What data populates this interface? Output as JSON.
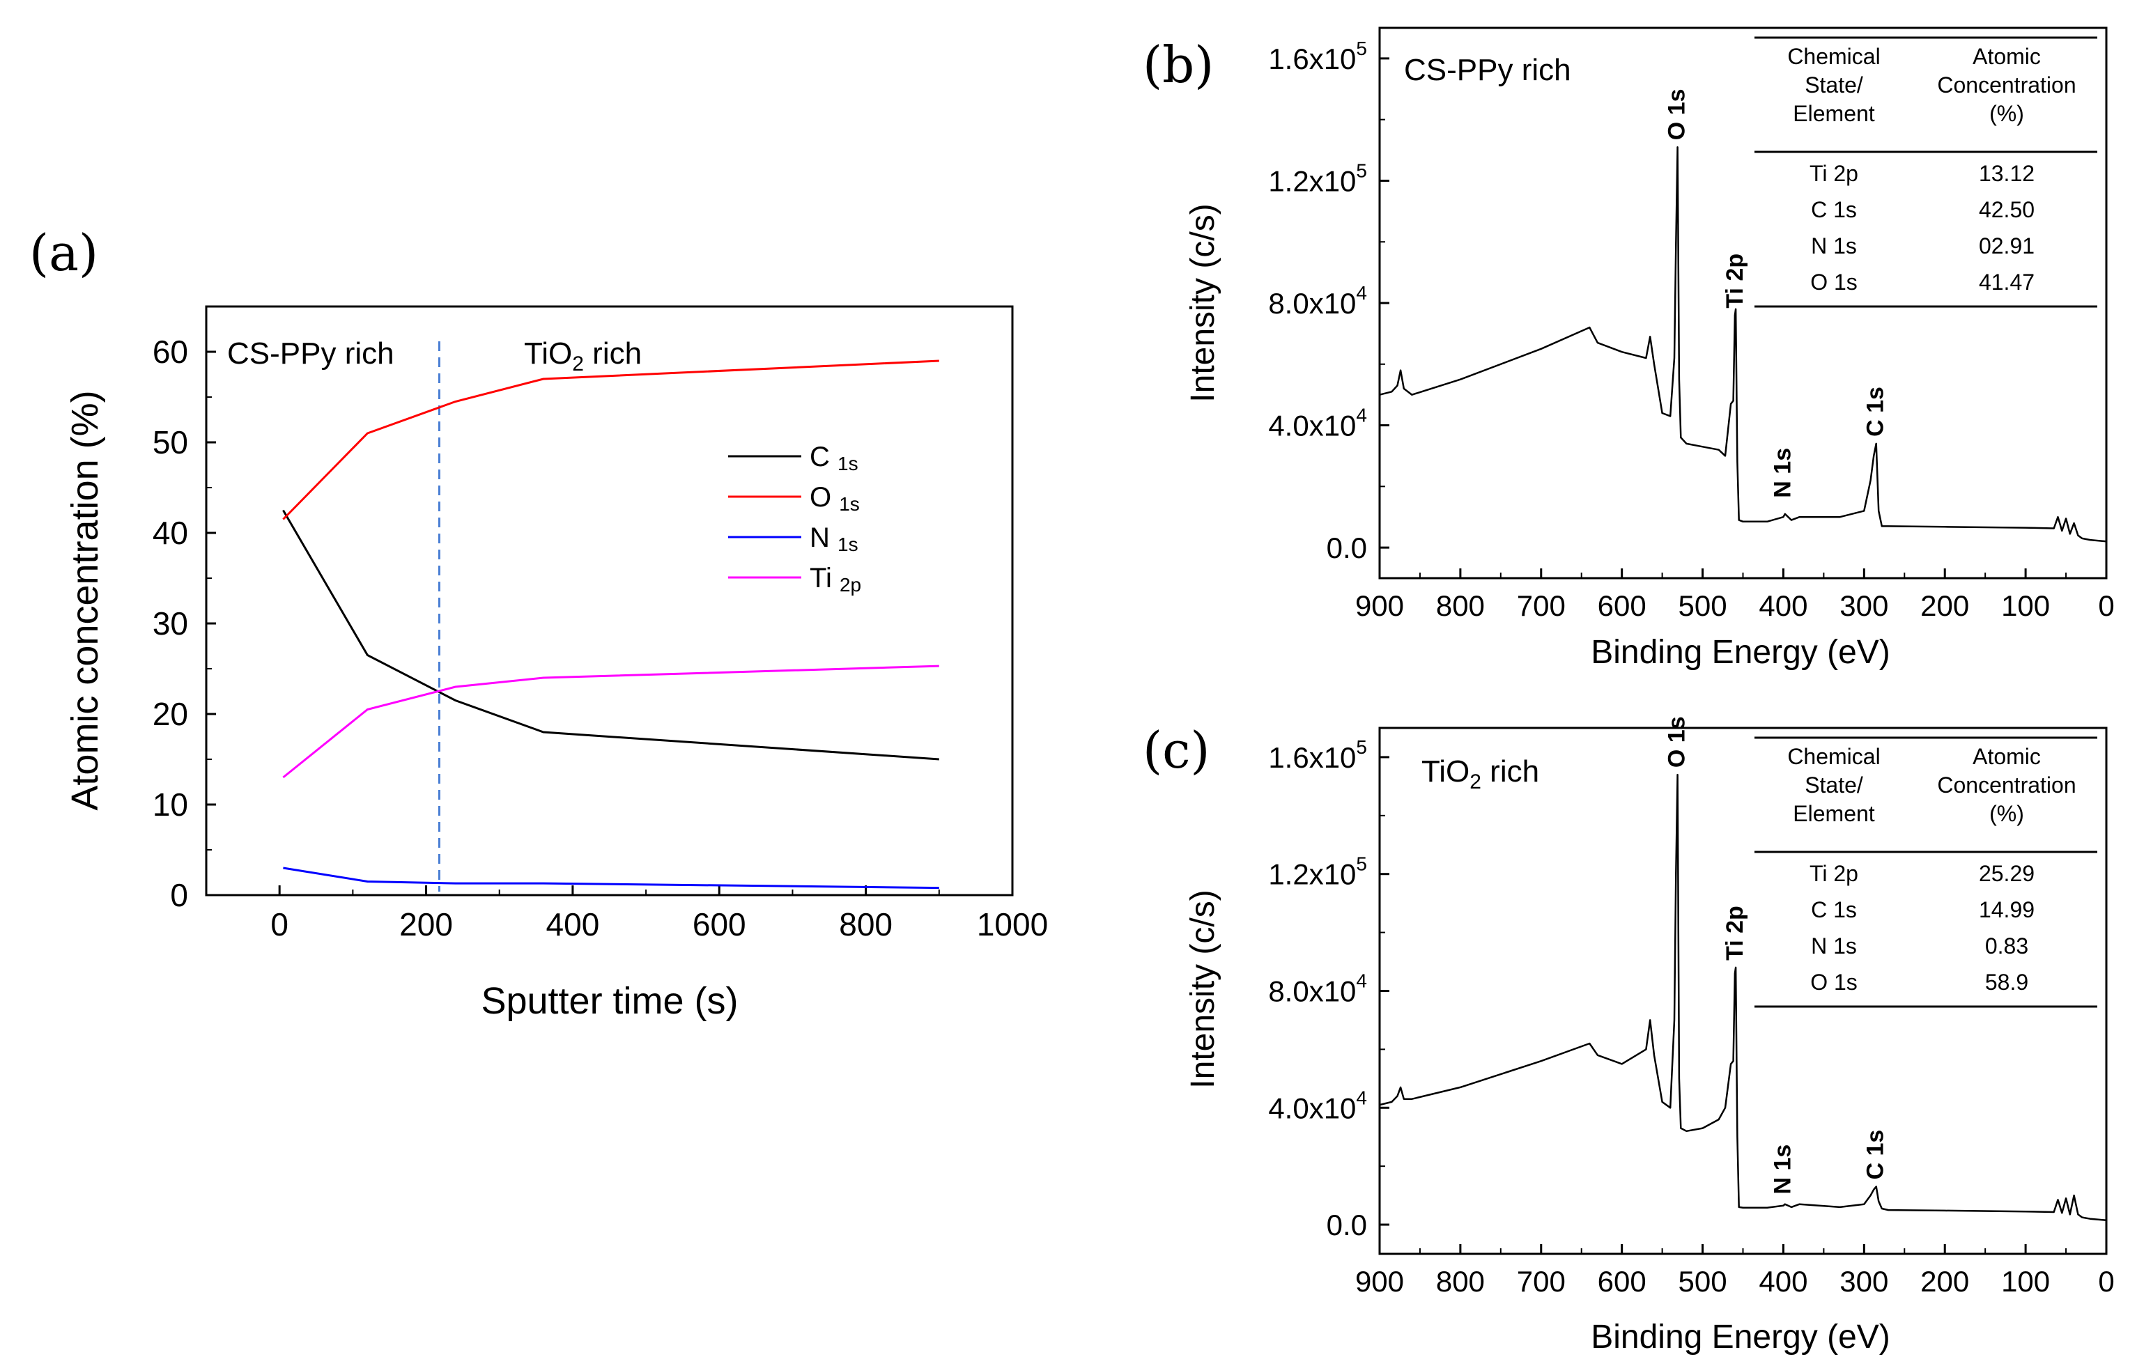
{
  "chart_data": [
    {
      "panel_label": "(a)",
      "type": "line",
      "xlabel": "Sputter time (s)",
      "ylabel": "Atomic concentration (%)",
      "xlim": [
        -100,
        1000
      ],
      "ylim": [
        0,
        65
      ],
      "x_ticks": [
        "0",
        "200",
        "400",
        "600",
        "800",
        "1000"
      ],
      "y_ticks": [
        "0",
        "10",
        "20",
        "30",
        "40",
        "50",
        "60"
      ],
      "region_left": "CS-PPy rich",
      "region_right_base": "TiO",
      "region_right_sub": "2",
      "region_right_rest": " rich",
      "divider_x": 218,
      "series": [
        {
          "name": "C",
          "sub": "1s",
          "color": "#000000",
          "x": [
            5,
            120,
            240,
            360,
            900
          ],
          "values": [
            42.5,
            26.5,
            21.5,
            18,
            15
          ]
        },
        {
          "name": "O",
          "sub": "1s",
          "color": "#ff0000",
          "x": [
            5,
            120,
            240,
            360,
            900
          ],
          "values": [
            41.5,
            51,
            54.5,
            57,
            59
          ]
        },
        {
          "name": "N",
          "sub": "1s",
          "color": "#0000ff",
          "x": [
            5,
            120,
            240,
            360,
            900
          ],
          "values": [
            3,
            1.5,
            1.3,
            1.3,
            0.8
          ]
        },
        {
          "name": "Ti",
          "sub": "2p",
          "color": "#ff00ff",
          "x": [
            5,
            120,
            240,
            360,
            900
          ],
          "values": [
            13,
            20.5,
            23,
            24,
            25.3
          ]
        }
      ]
    },
    {
      "panel_label": "(b)",
      "type": "line",
      "title": "CS-PPy rich",
      "xlabel": "Binding Energy (eV)",
      "ylabel": "Intensity (c/s)",
      "xlim": [
        900,
        0
      ],
      "ylim": [
        -10000,
        170000
      ],
      "x_ticks": [
        "900",
        "800",
        "700",
        "600",
        "500",
        "400",
        "300",
        "200",
        "100",
        "0"
      ],
      "y_ticks": [
        {
          "base": "0.0",
          "exp": ""
        },
        {
          "base": "4.0x10",
          "exp": "4"
        },
        {
          "base": "8.0x10",
          "exp": "4"
        },
        {
          "base": "1.2x10",
          "exp": "5"
        },
        {
          "base": "1.6x10",
          "exp": "5"
        }
      ],
      "peak_labels": [
        {
          "text": "O 1s",
          "x": 531,
          "y": 131000
        },
        {
          "text": "Ti 2p",
          "x": 459,
          "y": 76000
        },
        {
          "text": "N 1s",
          "x": 400,
          "y": 14000
        },
        {
          "text": "C 1s",
          "x": 285,
          "y": 34000
        }
      ],
      "x": [
        900,
        885,
        878,
        874,
        870,
        860,
        800,
        700,
        640,
        630,
        600,
        570,
        565,
        560,
        550,
        540,
        535,
        533,
        531,
        529,
        527,
        520,
        500,
        480,
        472,
        465,
        462,
        460,
        459,
        457,
        455,
        450,
        420,
        400,
        398,
        390,
        380,
        330,
        300,
        292,
        288,
        285,
        282,
        278,
        270,
        200,
        100,
        65,
        60,
        55,
        50,
        45,
        40,
        35,
        30,
        20,
        0
      ],
      "values": [
        50000,
        51000,
        53000,
        58000,
        52000,
        50000,
        55000,
        65000,
        72000,
        67000,
        64000,
        62000,
        69000,
        60000,
        44000,
        43000,
        62000,
        99000,
        131000,
        55000,
        36000,
        34000,
        33000,
        32000,
        30000,
        47000,
        48000,
        76000,
        78000,
        28000,
        9000,
        8500,
        8500,
        10000,
        11000,
        9000,
        10000,
        10000,
        12000,
        22000,
        30000,
        34000,
        12000,
        7000,
        7000,
        6800,
        6500,
        6300,
        10000,
        5500,
        9500,
        4500,
        8000,
        4000,
        3000,
        2500,
        2000
      ],
      "table": {
        "header_col1": [
          "Chemical",
          "State/",
          "Element"
        ],
        "header_col2": [
          "Atomic",
          "Concentration",
          "(%)"
        ],
        "rows": [
          [
            "Ti 2p",
            "13.12"
          ],
          [
            "C 1s",
            "42.50"
          ],
          [
            "N 1s",
            "02.91"
          ],
          [
            "O 1s",
            "41.47"
          ]
        ]
      }
    },
    {
      "panel_label": "(c)",
      "type": "line",
      "title_base": "TiO",
      "title_sub": "2",
      "title_rest": " rich",
      "xlabel": "Binding Energy (eV)",
      "ylabel": "Intensity (c/s)",
      "xlim": [
        900,
        0
      ],
      "ylim": [
        -10000,
        170000
      ],
      "x_ticks": [
        "900",
        "800",
        "700",
        "600",
        "500",
        "400",
        "300",
        "200",
        "100",
        "0"
      ],
      "y_ticks": [
        {
          "base": "0.0",
          "exp": ""
        },
        {
          "base": "4.0x10",
          "exp": "4"
        },
        {
          "base": "8.0x10",
          "exp": "4"
        },
        {
          "base": "1.2x10",
          "exp": "5"
        },
        {
          "base": "1.6x10",
          "exp": "5"
        }
      ],
      "peak_labels": [
        {
          "text": "O 1s",
          "x": 531,
          "y": 154000
        },
        {
          "text": "Ti 2p",
          "x": 459,
          "y": 88000
        },
        {
          "text": "N 1s",
          "x": 400,
          "y": 8000
        },
        {
          "text": "C 1s",
          "x": 285,
          "y": 13000
        }
      ],
      "x": [
        900,
        885,
        878,
        874,
        870,
        860,
        800,
        700,
        640,
        630,
        600,
        570,
        565,
        560,
        550,
        540,
        535,
        533,
        531,
        529,
        527,
        520,
        500,
        480,
        472,
        465,
        462,
        460,
        459,
        457,
        455,
        450,
        420,
        400,
        398,
        390,
        380,
        330,
        300,
        292,
        288,
        285,
        282,
        278,
        270,
        200,
        100,
        65,
        60,
        55,
        50,
        45,
        40,
        35,
        30,
        20,
        0
      ],
      "values": [
        41000,
        42000,
        44000,
        47000,
        43000,
        43000,
        47000,
        56000,
        62000,
        58000,
        55000,
        60000,
        70000,
        58000,
        42000,
        40000,
        70000,
        120000,
        154000,
        50000,
        33000,
        32000,
        33000,
        36000,
        40000,
        55000,
        56000,
        86000,
        88000,
        30000,
        6000,
        5800,
        5800,
        6500,
        7000,
        6000,
        7000,
        6000,
        7000,
        10000,
        12000,
        13000,
        8000,
        5500,
        5000,
        4800,
        4500,
        4300,
        8500,
        4000,
        9000,
        3500,
        10000,
        3500,
        2500,
        2000,
        1500
      ],
      "table": {
        "header_col1": [
          "Chemical",
          "State/",
          "Element"
        ],
        "header_col2": [
          "Atomic",
          "Concentration",
          "(%)"
        ],
        "rows": [
          [
            "Ti 2p",
            "25.29"
          ],
          [
            "C 1s",
            "14.99"
          ],
          [
            "N 1s",
            "0.83"
          ],
          [
            "O 1s",
            "58.9"
          ]
        ]
      }
    }
  ]
}
